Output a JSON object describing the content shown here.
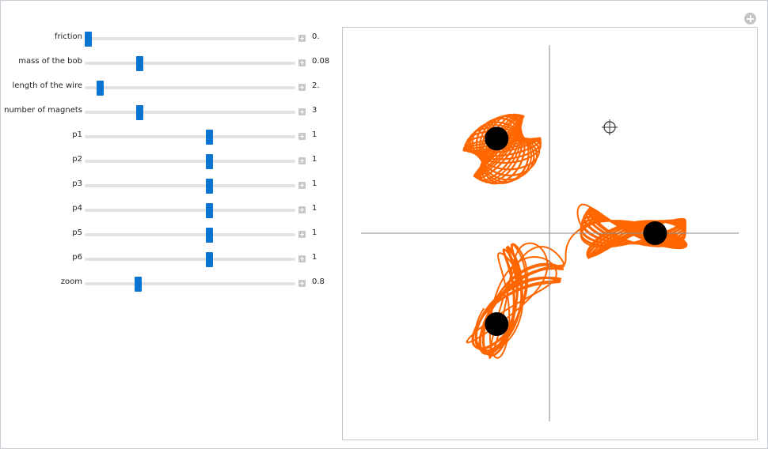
{
  "controls": [
    {
      "label": "friction",
      "value": "0.",
      "position": 0.015
    },
    {
      "label": "mass of the bob",
      "value": "0.08",
      "position": 0.26
    },
    {
      "label": "length of the wire",
      "value": "2.",
      "position": 0.07
    },
    {
      "label": "number of magnets",
      "value": "3",
      "position": 0.26
    },
    {
      "label": "p1",
      "value": "1",
      "position": 0.59
    },
    {
      "label": "p2",
      "value": "1",
      "position": 0.59
    },
    {
      "label": "p3",
      "value": "1",
      "position": 0.59
    },
    {
      "label": "p4",
      "value": "1",
      "position": 0.59
    },
    {
      "label": "p5",
      "value": "1",
      "position": 0.59
    },
    {
      "label": "p6",
      "value": "1",
      "position": 0.59
    },
    {
      "label": "zoom",
      "value": "0.8",
      "position": 0.25
    }
  ],
  "colors": {
    "slider_thumb": "#0a74d2",
    "trajectory": "#ff6600",
    "magnet": "#000000",
    "axes": "#8a8a8a"
  },
  "plot": {
    "magnets": [
      {
        "label": "magnet-1",
        "x": -0.29,
        "y": 0.52
      },
      {
        "label": "magnet-2",
        "x": 0.58,
        "y": -0.0
      },
      {
        "label": "magnet-3",
        "x": -0.29,
        "y": -0.5
      }
    ],
    "cursor_icon": "crosshair-icon"
  }
}
